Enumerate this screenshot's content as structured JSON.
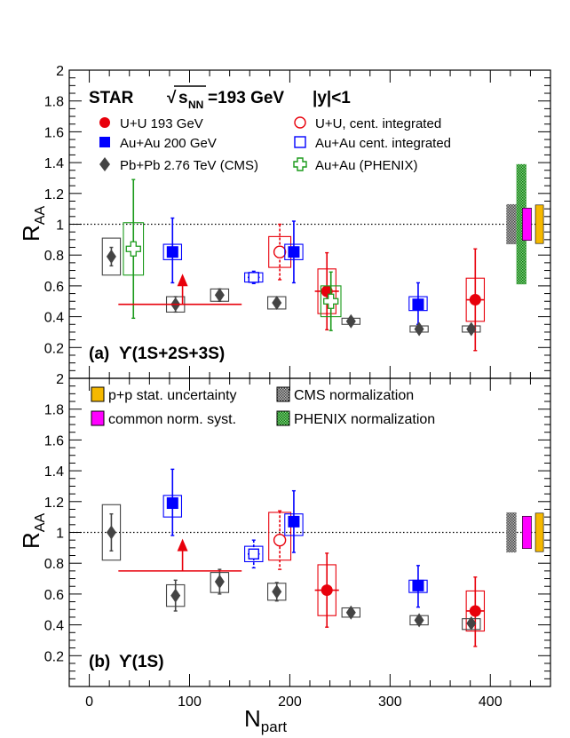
{
  "colors": {
    "red": "#e8000b",
    "blue": "#0000ff",
    "cms": "#444444",
    "green": "#1a9a1a",
    "yellow": "#f5b800",
    "magenta": "#ff00ff",
    "axis": "#000000"
  },
  "shared": {
    "xlabel_main": "N",
    "xlabel_sub": "part",
    "xlim": [
      -20,
      460
    ],
    "xticks": [
      0,
      100,
      200,
      300,
      400
    ],
    "pp_band": {
      "x": [
        445,
        453
      ],
      "low": 0.875,
      "high": 1.125
    },
    "norm_band": {
      "x": [
        432,
        441
      ],
      "low": 0.895,
      "high": 1.105
    },
    "cms_norm_band": {
      "x": [
        416,
        426
      ],
      "low": 0.87,
      "high": 1.13
    }
  },
  "chart_data": [
    {
      "type": "scatter",
      "panel": "top",
      "title": "STAR",
      "energy_prefix": "√",
      "energy_s": "s",
      "energy_sub": "NN",
      "energy_value": "=193 GeV",
      "rapidity": "|y|<1",
      "ylabel_main": "R",
      "ylabel_sub": "AA",
      "ylim": [
        0,
        2
      ],
      "yticks": [
        {
          "v": 0.2,
          "label": "0.2"
        },
        {
          "v": 0.4,
          "label": "0.4"
        },
        {
          "v": 0.6,
          "label": "0.6"
        },
        {
          "v": 0.8,
          "label": "0.8"
        },
        {
          "v": 1,
          "label": "1"
        },
        {
          "v": 1.2,
          "label": "1.2"
        },
        {
          "v": 1.4,
          "label": "1.4"
        },
        {
          "v": 1.6,
          "label": "1.6"
        },
        {
          "v": 1.8,
          "label": "1.8"
        },
        {
          "v": 2,
          "label": "2"
        }
      ],
      "panel_label_prefix": "(a)",
      "panel_label_state": "ϒ(1S+2S+3S)",
      "legend": [
        "U+U 193 GeV",
        "U+U, cent. integrated",
        "Au+Au 200 GeV",
        "Au+Au cent. integrated",
        "Pb+Pb 2.76 TeV (CMS)",
        "Au+Au (PHENIX)"
      ],
      "phenix_norm_band": {
        "x": [
          426,
          436
        ],
        "low": 0.61,
        "high": 1.39
      },
      "series": [
        {
          "name": "U+U 193 GeV",
          "style": "circle-filled",
          "color": "red",
          "points": [
            {
              "x": 237,
              "y": 0.565,
              "xe": 12,
              "ye_low": 0.25,
              "ye_high": 0.25,
              "sys_w": 18,
              "sys_low": 0.42,
              "sys_high": 0.71
            },
            {
              "x": 385,
              "y": 0.51,
              "xe": 9,
              "ye_low": 0.33,
              "ye_high": 0.33,
              "sys_w": 18,
              "sys_low": 0.37,
              "sys_high": 0.65
            }
          ]
        },
        {
          "name": "U+U, cent. integrated",
          "style": "circle-open",
          "color": "red",
          "points": [
            {
              "x": 190,
              "y": 0.82,
              "xe": 0,
              "ye_low": 0.18,
              "ye_high": 0.18,
              "sys_w": 22,
              "sys_low": 0.72,
              "sys_high": 0.92,
              "dashed": true
            }
          ]
        },
        {
          "name": "Au+Au 200 GeV",
          "style": "square-filled",
          "color": "blue",
          "points": [
            {
              "x": 83,
              "y": 0.82,
              "xe": 0,
              "ye_low": 0.2,
              "ye_high": 0.22,
              "sys_w": 18,
              "sys_low": 0.77,
              "sys_high": 0.87
            },
            {
              "x": 204,
              "y": 0.82,
              "xe": 0,
              "ye_low": 0.2,
              "ye_high": 0.2,
              "sys_w": 18,
              "sys_low": 0.77,
              "sys_high": 0.87
            },
            {
              "x": 328,
              "y": 0.48,
              "xe": 0,
              "ye_low": 0.13,
              "ye_high": 0.14,
              "sys_w": 18,
              "sys_low": 0.44,
              "sys_high": 0.53
            }
          ]
        },
        {
          "name": "Au+Au cent. integrated",
          "style": "square-open",
          "color": "blue",
          "points": [
            {
              "x": 164,
              "y": 0.655,
              "xe": 6,
              "ye_low": 0.04,
              "ye_high": 0.04,
              "sys_w": 18,
              "sys_low": 0.625,
              "sys_high": 0.685,
              "dashed": true
            }
          ]
        },
        {
          "name": "Pb+Pb 2.76 TeV (CMS)",
          "style": "diamond",
          "color": "cms",
          "points": [
            {
              "x": 22,
              "y": 0.79,
              "xe": 0,
              "ye_low": 0.06,
              "ye_high": 0.06,
              "sys_w": 18,
              "sys_low": 0.67,
              "sys_high": 0.91
            },
            {
              "x": 86,
              "y": 0.48,
              "xe": 0,
              "ye_low": 0.05,
              "ye_high": 0.05,
              "sys_w": 18,
              "sys_low": 0.43,
              "sys_high": 0.53
            },
            {
              "x": 130,
              "y": 0.54,
              "xe": 0,
              "ye_low": 0.04,
              "ye_high": 0.04,
              "sys_w": 18,
              "sys_low": 0.5,
              "sys_high": 0.58
            },
            {
              "x": 187,
              "y": 0.49,
              "xe": 0,
              "ye_low": 0,
              "ye_high": 0,
              "sys_w": 18,
              "sys_low": 0.45,
              "sys_high": 0.53
            },
            {
              "x": 261,
              "y": 0.37,
              "xe": 0,
              "ye_low": 0,
              "ye_high": 0,
              "sys_w": 18,
              "sys_low": 0.35,
              "sys_high": 0.39
            },
            {
              "x": 329,
              "y": 0.32,
              "xe": 0,
              "ye_low": 0,
              "ye_high": 0,
              "sys_w": 18,
              "sys_low": 0.3,
              "sys_high": 0.34
            },
            {
              "x": 381,
              "y": 0.32,
              "xe": 0,
              "ye_low": 0,
              "ye_high": 0,
              "sys_w": 18,
              "sys_low": 0.3,
              "sys_high": 0.34
            }
          ]
        },
        {
          "name": "Au+Au (PHENIX)",
          "style": "cross-open",
          "color": "green",
          "points": [
            {
              "x": 44,
              "y": 0.84,
              "xe": 0,
              "ye_low": 0.45,
              "ye_high": 0.45,
              "sys_w": 20,
              "sys_low": 0.67,
              "sys_high": 1.01
            },
            {
              "x": 241,
              "y": 0.5,
              "xe": 0,
              "ye_low": 0.19,
              "ye_high": 0.19,
              "sys_w": 20,
              "sys_low": 0.4,
              "sys_high": 0.6
            }
          ]
        }
      ],
      "upper_limits": [
        {
          "x": 93,
          "y": 0.65,
          "from": 0.48,
          "x_low": 29,
          "x_high": 152,
          "color": "red"
        }
      ]
    },
    {
      "type": "scatter",
      "panel": "bottom",
      "ylabel_main": "R",
      "ylabel_sub": "AA",
      "ylim": [
        0,
        2
      ],
      "yticks": [
        {
          "v": 0.2,
          "label": "0.2"
        },
        {
          "v": 0.4,
          "label": "0.4"
        },
        {
          "v": 0.6,
          "label": "0.6"
        },
        {
          "v": 0.8,
          "label": "0.8"
        },
        {
          "v": 1,
          "label": "1"
        },
        {
          "v": 1.2,
          "label": "1.2"
        },
        {
          "v": 1.4,
          "label": "1.4"
        },
        {
          "v": 1.6,
          "label": "1.6"
        },
        {
          "v": 1.8,
          "label": "1.8"
        },
        {
          "v": 2,
          "label": "2"
        }
      ],
      "panel_label_prefix": "(b)",
      "panel_label_state": "ϒ(1S)",
      "legend": [
        "p+p stat. uncertainty",
        "CMS normalization",
        "common norm. syst.",
        "PHENIX normalization"
      ],
      "series": [
        {
          "name": "U+U 193 GeV",
          "style": "circle-filled",
          "color": "red",
          "points": [
            {
              "x": 237,
              "y": 0.625,
              "xe": 12,
              "ye_low": 0.24,
              "ye_high": 0.24,
              "sys_w": 18,
              "sys_low": 0.46,
              "sys_high": 0.79
            },
            {
              "x": 385,
              "y": 0.49,
              "xe": 9,
              "ye_low": 0.23,
              "ye_high": 0.22,
              "sys_w": 18,
              "sys_low": 0.36,
              "sys_high": 0.62
            }
          ]
        },
        {
          "name": "U+U, cent. integrated",
          "style": "circle-open",
          "color": "red",
          "points": [
            {
              "x": 190,
              "y": 0.95,
              "xe": 0,
              "ye_low": 0.19,
              "ye_high": 0.19,
              "sys_w": 22,
              "sys_low": 0.82,
              "sys_high": 1.13,
              "dashed": true
            }
          ]
        },
        {
          "name": "Au+Au 200 GeV",
          "style": "square-filled",
          "color": "blue",
          "points": [
            {
              "x": 83,
              "y": 1.19,
              "xe": 0,
              "ye_low": 0.21,
              "ye_high": 0.22,
              "sys_w": 18,
              "sys_low": 1.1,
              "sys_high": 1.24
            },
            {
              "x": 204,
              "y": 1.07,
              "xe": 0,
              "ye_low": 0.2,
              "ye_high": 0.2,
              "sys_w": 18,
              "sys_low": 0.98,
              "sys_high": 1.12
            },
            {
              "x": 328,
              "y": 0.655,
              "xe": 0,
              "ye_low": 0.14,
              "ye_high": 0.13,
              "sys_w": 18,
              "sys_low": 0.61,
              "sys_high": 0.69
            }
          ]
        },
        {
          "name": "Au+Au cent. integrated",
          "style": "square-open",
          "color": "blue",
          "points": [
            {
              "x": 164,
              "y": 0.86,
              "xe": 6,
              "ye_low": 0.09,
              "ye_high": 0.09,
              "sys_w": 18,
              "sys_low": 0.81,
              "sys_high": 0.91,
              "dashed": true
            }
          ]
        },
        {
          "name": "Pb+Pb 2.76 TeV (CMS)",
          "style": "diamond",
          "color": "cms",
          "points": [
            {
              "x": 22,
              "y": 1.0,
              "xe": 0,
              "ye_low": 0.12,
              "ye_high": 0.12,
              "sys_w": 18,
              "sys_low": 0.82,
              "sys_high": 1.18
            },
            {
              "x": 86,
              "y": 0.59,
              "xe": 0,
              "ye_low": 0.1,
              "ye_high": 0.1,
              "sys_w": 18,
              "sys_low": 0.52,
              "sys_high": 0.66
            },
            {
              "x": 130,
              "y": 0.68,
              "xe": 0,
              "ye_low": 0.08,
              "ye_high": 0.08,
              "sys_w": 18,
              "sys_low": 0.61,
              "sys_high": 0.74
            },
            {
              "x": 187,
              "y": 0.615,
              "xe": 0,
              "ye_low": 0.06,
              "ye_high": 0.06,
              "sys_w": 18,
              "sys_low": 0.56,
              "sys_high": 0.67
            },
            {
              "x": 261,
              "y": 0.48,
              "xe": 0,
              "ye_low": 0,
              "ye_high": 0,
              "sys_w": 18,
              "sys_low": 0.45,
              "sys_high": 0.51
            },
            {
              "x": 329,
              "y": 0.43,
              "xe": 0,
              "ye_low": 0,
              "ye_high": 0,
              "sys_w": 18,
              "sys_low": 0.4,
              "sys_high": 0.46
            },
            {
              "x": 381,
              "y": 0.41,
              "xe": 0,
              "ye_low": 0,
              "ye_high": 0,
              "sys_w": 18,
              "sys_low": 0.37,
              "sys_high": 0.44
            }
          ]
        }
      ],
      "upper_limits": [
        {
          "x": 93,
          "y": 0.93,
          "from": 0.75,
          "x_low": 29,
          "x_high": 152,
          "color": "red"
        }
      ]
    }
  ]
}
